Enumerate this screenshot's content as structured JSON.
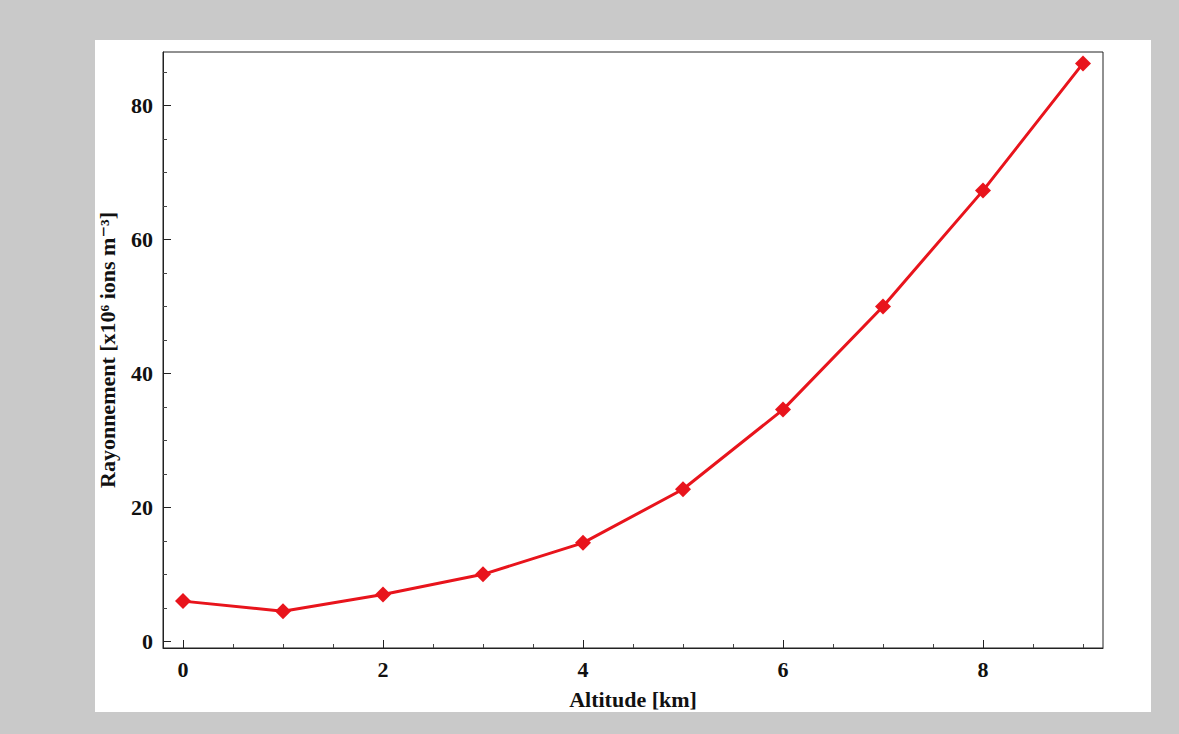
{
  "chart_data": {
    "type": "line",
    "xlabel": "Altitude [km]",
    "ylabel": "Rayonnement [x10⁶ ions m⁻³]",
    "x": [
      0,
      1,
      2,
      3,
      4,
      5,
      6,
      7,
      8,
      9
    ],
    "values": [
      6,
      4.5,
      7,
      10,
      14.7,
      22.7,
      34.6,
      50,
      67.3,
      86.3
    ],
    "color": "#e8141c",
    "marker": "diamond",
    "line_style": "solid",
    "xlim": [
      -0.2,
      9.2
    ],
    "ylim": [
      -1,
      88
    ],
    "xticks": [
      0,
      2,
      4,
      6,
      8
    ],
    "yticks": [
      0,
      20,
      40,
      60,
      80
    ],
    "grid": false
  }
}
